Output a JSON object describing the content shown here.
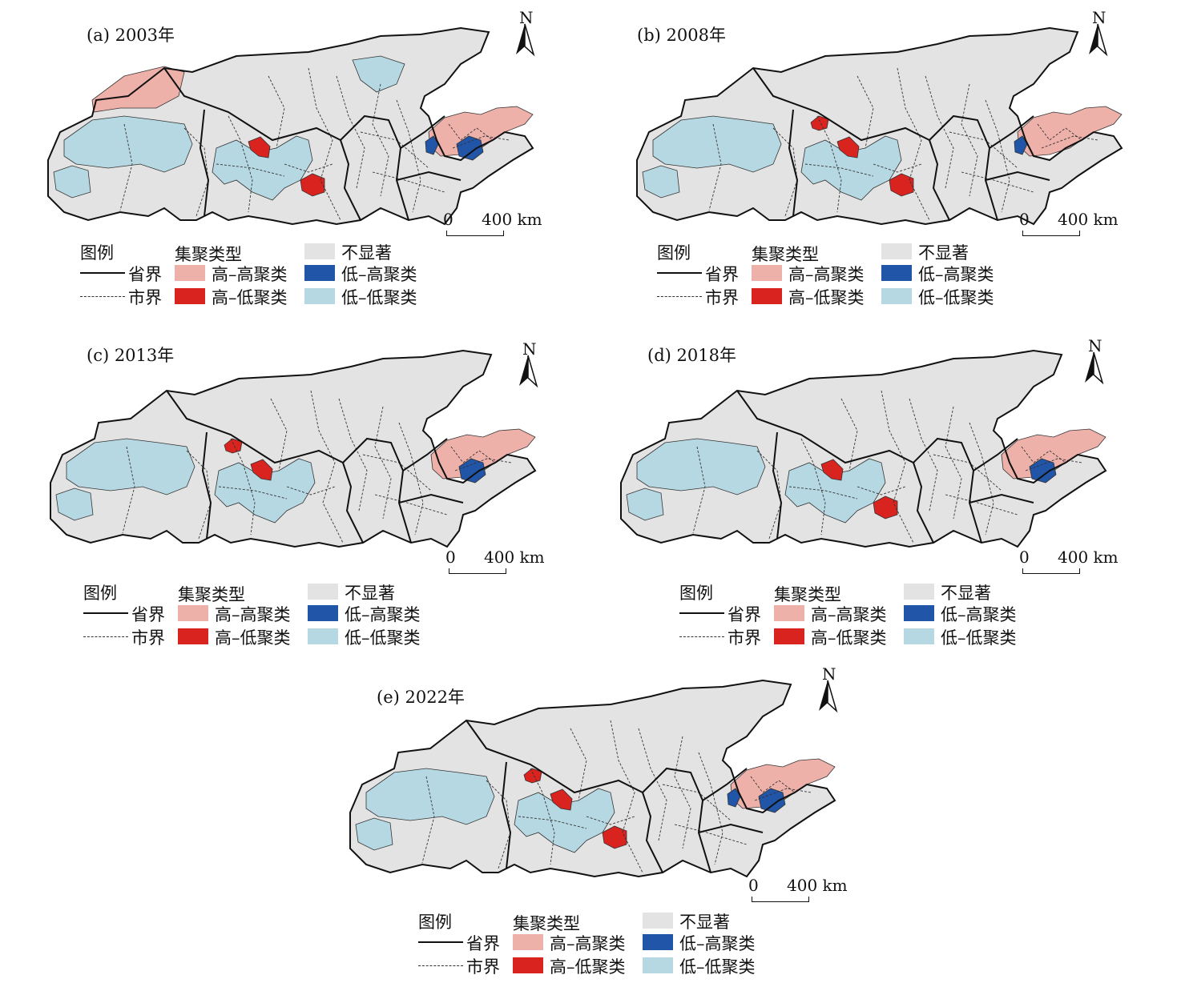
{
  "colors": {
    "not_significant": "#e3e3e3",
    "high_high": "#eeb1aa",
    "high_low": "#d8231f",
    "low_high": "#2155a8",
    "low_low": "#b6d8e2"
  },
  "legend": {
    "title": "图例",
    "cluster_title": "集聚类型",
    "province_boundary": "省界",
    "city_boundary": "市界",
    "not_significant": "不显著",
    "high_high": "高–高聚类",
    "high_low": "高–低聚类",
    "low_high": "低–高聚类",
    "low_low": "低–低聚类"
  },
  "north_label": "N",
  "scale": {
    "zero": "0",
    "distance": "400 km"
  },
  "panels": [
    {
      "title": "(a) 2003年",
      "clusters": {
        "high_high": [
          "far-west north region",
          "eastern peninsula"
        ],
        "high_low": [
          "central city",
          "south-central city"
        ],
        "low_high": [
          "eastern coastal city",
          "eastern inland city"
        ],
        "low_low": [
          "western plateau",
          "southwest area",
          "central belt",
          "north-central strip"
        ]
      }
    },
    {
      "title": "(b) 2008年",
      "clusters": {
        "high_high": [
          "eastern peninsula"
        ],
        "high_low": [
          "north-central city",
          "central city",
          "south-central city"
        ],
        "low_high": [
          "eastern coastal city"
        ],
        "low_low": [
          "western plateau",
          "southwest area",
          "central belt"
        ]
      }
    },
    {
      "title": "(c) 2013年",
      "clusters": {
        "high_high": [
          "eastern peninsula"
        ],
        "high_low": [
          "north-central city",
          "central city"
        ],
        "low_high": [
          "eastern inland city"
        ],
        "low_low": [
          "western plateau",
          "central belt"
        ]
      }
    },
    {
      "title": "(d) 2018年",
      "clusters": {
        "high_high": [
          "eastern peninsula"
        ],
        "high_low": [
          "central city",
          "south-central city"
        ],
        "low_high": [
          "eastern inland city"
        ],
        "low_low": [
          "western plateau",
          "southwest area",
          "central belt"
        ]
      }
    },
    {
      "title": "(e) 2022年",
      "clusters": {
        "high_high": [
          "eastern peninsula"
        ],
        "high_low": [
          "north-central city",
          "central city",
          "south-central city"
        ],
        "low_high": [
          "eastern coastal city",
          "eastern inland city"
        ],
        "low_low": [
          "western plateau",
          "southwest area",
          "central belt"
        ]
      }
    }
  ]
}
